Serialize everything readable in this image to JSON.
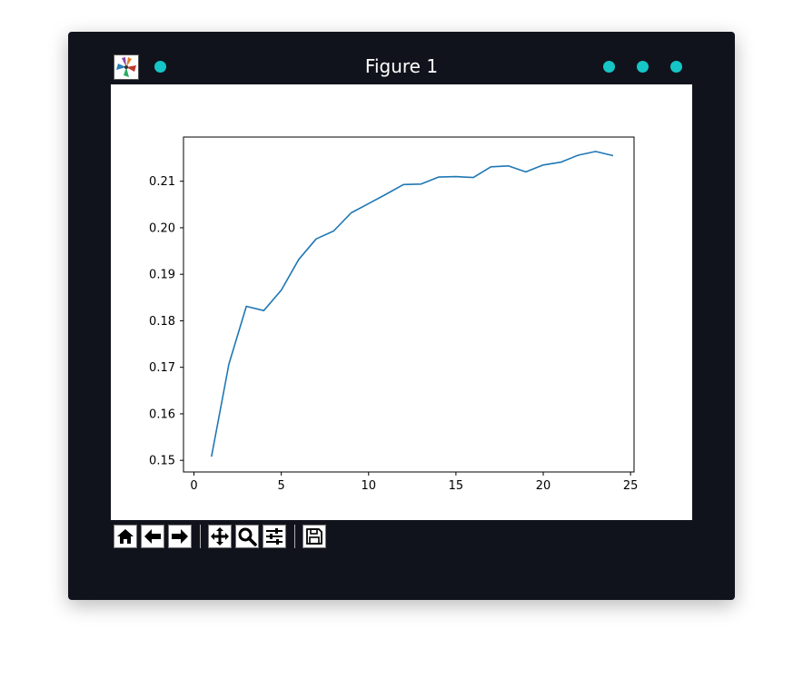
{
  "window": {
    "title": "Figure 1",
    "accent_color": "#16c5c5",
    "background": "#11131c"
  },
  "toolbar": {
    "buttons": [
      {
        "name": "home",
        "icon": "home-icon"
      },
      {
        "name": "back",
        "icon": "arrow-left-icon"
      },
      {
        "name": "forward",
        "icon": "arrow-right-icon"
      },
      {
        "name": "pan",
        "icon": "move-icon"
      },
      {
        "name": "zoom",
        "icon": "zoom-icon"
      },
      {
        "name": "configure",
        "icon": "sliders-icon"
      },
      {
        "name": "save",
        "icon": "save-icon"
      }
    ]
  },
  "chart_data": {
    "type": "line",
    "title": "",
    "xlabel": "",
    "ylabel": "",
    "xlim": [
      -0.6,
      25.2
    ],
    "ylim": [
      0.1475,
      0.2195
    ],
    "xticks": [
      0,
      5,
      10,
      15,
      20,
      25
    ],
    "yticks": [
      0.15,
      0.16,
      0.17,
      0.18,
      0.19,
      0.2,
      0.21
    ],
    "ytick_labels": [
      "0.15",
      "0.16",
      "0.17",
      "0.18",
      "0.19",
      "0.20",
      "0.21"
    ],
    "grid": false,
    "series": [
      {
        "color": "#1f77b4",
        "x": [
          1,
          2,
          3,
          4,
          5,
          6,
          7,
          8,
          9,
          10,
          11,
          12,
          13,
          14,
          15,
          16,
          17,
          18,
          19,
          20,
          21,
          22,
          23,
          24
        ],
        "y": [
          0.1508,
          0.1707,
          0.1831,
          0.1822,
          0.1866,
          0.1932,
          0.1976,
          0.1993,
          0.2032,
          0.2052,
          0.2072,
          0.2093,
          0.2094,
          0.2109,
          0.211,
          0.2108,
          0.2131,
          0.2133,
          0.212,
          0.2135,
          0.2141,
          0.2156,
          0.2164,
          0.2155
        ]
      }
    ]
  }
}
